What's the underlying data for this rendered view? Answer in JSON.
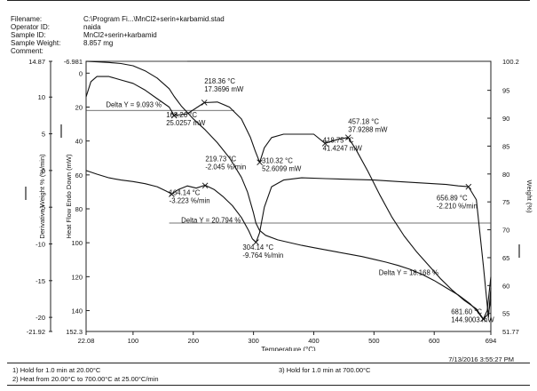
{
  "header": {
    "fields": [
      {
        "label": "Filename:",
        "value": "C:\\Program Fi...\\MnCl2+serin+karbamid.stad"
      },
      {
        "label": "Operator ID:",
        "value": "naida"
      },
      {
        "label": "Sample ID:",
        "value": "MnCl2+serin+karbamid"
      },
      {
        "label": "Sample Weight:",
        "value": "8.857 mg"
      },
      {
        "label": "Comment:",
        "value": ""
      }
    ]
  },
  "chart_data": {
    "type": "line",
    "xlabel": "Temperature (°C)",
    "xlim": [
      22.08,
      694
    ],
    "x_ticks": [
      "22.08",
      "100",
      "200",
      "300",
      "400",
      "500",
      "600",
      "694"
    ],
    "axes": {
      "derivative": {
        "label": "Derivative Weight % (%/min)",
        "lim": [
          -21.92,
          14.87
        ],
        "ticks": [
          "14.87",
          "10",
          "5",
          "0",
          "-5",
          "-10",
          "-15",
          "-20",
          "-21.92"
        ]
      },
      "heatflow": {
        "label": "Heat Flow Endo Down (mW)",
        "lim": [
          152.3,
          -6.981
        ],
        "ticks": [
          "-6.981",
          "0",
          "20",
          "40",
          "60",
          "80",
          "100",
          "120",
          "140",
          "152.3"
        ]
      },
      "weight": {
        "label": "Weight (%)",
        "lim": [
          51.77,
          100.2
        ],
        "ticks": [
          "100.2",
          "95",
          "90",
          "85",
          "80",
          "75",
          "70",
          "65",
          "60",
          "55",
          "51.77"
        ]
      }
    },
    "series": [
      {
        "axis": "weight",
        "color": "#111111",
        "x": [
          22.08,
          40,
          60,
          80,
          100,
          120,
          140,
          160,
          168.26,
          180,
          200,
          220,
          240,
          260,
          280,
          290,
          300,
          304,
          310,
          320,
          340,
          360,
          380,
          400,
          420,
          440,
          460,
          480,
          500,
          520,
          540,
          560,
          580,
          600,
          620,
          640,
          660,
          670,
          681.6,
          690,
          694
        ],
        "y": [
          100.2,
          100.1,
          100.0,
          99.8,
          99.4,
          98.5,
          97.2,
          95.3,
          93.9,
          92.2,
          89.9,
          87.9,
          85.6,
          82.9,
          79.4,
          76.8,
          73.0,
          71.2,
          69.9,
          69.0,
          68.2,
          67.7,
          67.2,
          66.8,
          66.4,
          66.0,
          65.6,
          65.2,
          64.7,
          64.2,
          63.6,
          62.9,
          62.0,
          60.9,
          59.6,
          58.3,
          56.7,
          55.6,
          53.9,
          55.0,
          57.5
        ]
      },
      {
        "axis": "heatflow",
        "color": "#111111",
        "x": [
          22.08,
          30,
          40,
          60,
          80,
          100,
          120,
          140,
          160,
          168.26,
          190,
          218.36,
          240,
          260,
          280,
          295,
          303,
          310.32,
          318,
          330,
          350,
          370,
          400,
          418.75,
          440,
          457.18,
          470,
          490,
          510,
          530,
          550,
          570,
          590,
          610,
          630,
          650,
          670,
          681.6,
          688,
          694
        ],
        "y": [
          14,
          5,
          2,
          2,
          4,
          6,
          10,
          15,
          20,
          25,
          24,
          17.4,
          17,
          20,
          27,
          38,
          46,
          52.6,
          44,
          38,
          36,
          36,
          36,
          41.4,
          39,
          37.9,
          45,
          58,
          72,
          85,
          96,
          105,
          113,
          121,
          128,
          134,
          139,
          144.9,
          140,
          120
        ]
      },
      {
        "axis": "derivative",
        "color": "#111111",
        "x": [
          22.08,
          40,
          60,
          80,
          100,
          120,
          140,
          155,
          164.14,
          175,
          190,
          205,
          219.73,
          235,
          250,
          265,
          280,
          292,
          298,
          304.14,
          310,
          318,
          330,
          350,
          380,
          420,
          460,
          500,
          540,
          580,
          620,
          640,
          656.89,
          670,
          681.6,
          690,
          694
        ],
        "y": [
          0.0,
          -0.5,
          -1.0,
          -1.3,
          -1.5,
          -1.8,
          -2.2,
          -2.8,
          -3.2,
          -2.6,
          -2.1,
          -2.4,
          -2.0,
          -2.6,
          -3.6,
          -4.8,
          -6.4,
          -8.2,
          -9.3,
          -9.8,
          -8.5,
          -5.0,
          -2.2,
          -1.3,
          -1.0,
          -1.1,
          -1.2,
          -1.3,
          -1.5,
          -1.7,
          -1.9,
          -2.1,
          -2.2,
          -4.0,
          -13.0,
          -20.0,
          -16.0
        ]
      }
    ],
    "annotations": [
      {
        "text": "Delta Y = 9.093 %",
        "x": 55,
        "axis": "heatflow",
        "y": 20
      },
      {
        "text": "Delta Y = 20.794 %",
        "x": 180,
        "axis": "heatflow",
        "y": 88
      },
      {
        "text": "Delta Y = 18.168 %",
        "x": 508,
        "axis": "heatflow",
        "y": 119
      },
      {
        "lines": [
          "218.36 °C",
          "17.3696 mW"
        ],
        "x": 218.36,
        "axis": "heatflow",
        "y": 6,
        "align": "left"
      },
      {
        "lines": [
          "168.26 °C",
          "25.0257 mW"
        ],
        "x": 155,
        "axis": "heatflow",
        "y": 26,
        "align": "left"
      },
      {
        "lines": [
          "457.18 °C",
          "37.9288 mW"
        ],
        "x": 457.18,
        "axis": "heatflow",
        "y": 30,
        "align": "left"
      },
      {
        "lines": [
          "418.75 °C",
          "41.4247 mW"
        ],
        "x": 415,
        "axis": "heatflow",
        "y": 41,
        "align": "left"
      },
      {
        "lines": [
          "310.32 °C",
          "52.6099 mW"
        ],
        "x": 314,
        "axis": "heatflow",
        "y": 53,
        "align": "left"
      },
      {
        "lines": [
          "219.73 °C",
          "-2.045 %/min"
        ],
        "x": 220,
        "axis": "heatflow",
        "y": 52,
        "align": "left"
      },
      {
        "lines": [
          "164.14 °C",
          "-3.223 %/min"
        ],
        "x": 160,
        "axis": "heatflow",
        "y": 72,
        "align": "left"
      },
      {
        "lines": [
          "304.14 °C",
          "-9.764 %/min"
        ],
        "x": 282,
        "axis": "heatflow",
        "y": 104,
        "align": "left"
      },
      {
        "lines": [
          "656.89 °C",
          "-2.210 %/min"
        ],
        "x": 604,
        "axis": "heatflow",
        "y": 75,
        "align": "left"
      },
      {
        "lines": [
          "681.60 °C",
          "144.9003 mW"
        ],
        "x": 628,
        "axis": "heatflow",
        "y": 142,
        "align": "left"
      }
    ],
    "step_lines": [
      {
        "axis": "weight",
        "y": 91.4,
        "x1": 22.08,
        "x2": 268
      },
      {
        "axis": "weight",
        "y": 71.2,
        "x1": 160,
        "x2": 694
      },
      {
        "axis": "weight",
        "y": 100.2,
        "x1": 22.08,
        "x2": 190
      }
    ],
    "grid": false,
    "legend": "none"
  },
  "footer": {
    "methods": [
      "1) Hold for 1.0 min at 20.00°C",
      "2) Heat from 20.00°C to 700.00°C at 25.00°C/min",
      "3)  Hold for 1.0 min at 700.00°C"
    ],
    "timestamp": "7/13/2016 3:55:27 PM"
  }
}
